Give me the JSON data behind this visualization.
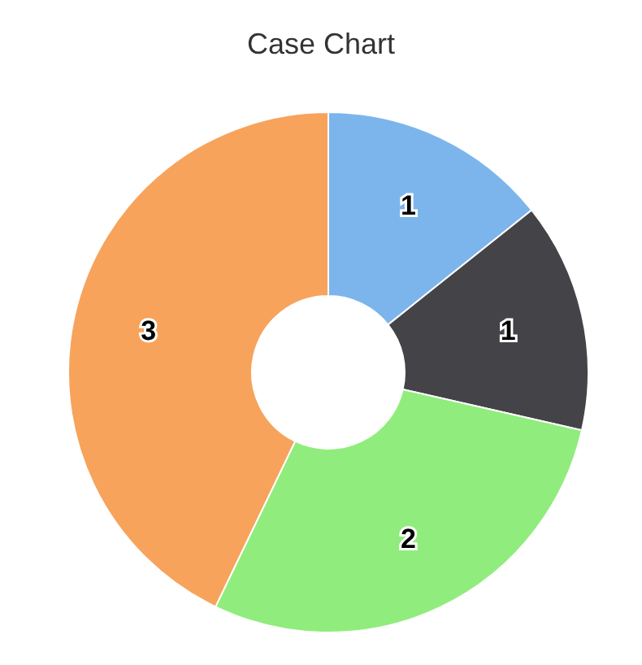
{
  "chart_data": {
    "type": "donut",
    "title": "Case Chart",
    "categories": [
      null,
      null,
      null,
      null
    ],
    "values": [
      1,
      1,
      2,
      3
    ],
    "colors": [
      "#7cb5ec",
      "#434348",
      "#90ed7d",
      "#f7a35c"
    ],
    "data_labels": true,
    "legend": false
  }
}
